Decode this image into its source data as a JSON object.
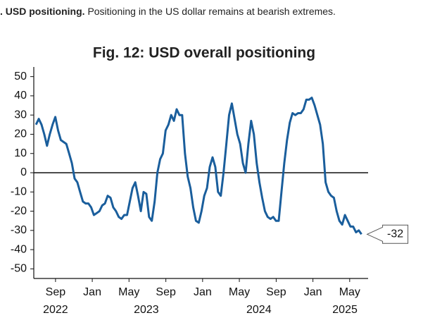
{
  "header": {
    "lead": ". USD positioning.",
    "text": "Positioning in the US dollar remains at bearish extremes."
  },
  "chart_data": {
    "type": "line",
    "title": "Fig. 12: USD overall positioning",
    "color": "#1a5e9c",
    "x": [
      2022.49,
      2022.515,
      2022.54,
      2022.565,
      2022.59,
      2022.615,
      2022.64,
      2022.665,
      2022.69,
      2022.715,
      2022.74,
      2022.765,
      2022.79,
      2022.815,
      2022.84,
      2022.865,
      2022.89,
      2022.915,
      2022.94,
      2022.965,
      2022.99,
      2023.015,
      2023.04,
      2023.065,
      2023.09,
      2023.115,
      2023.14,
      2023.165,
      2023.19,
      2023.215,
      2023.24,
      2023.265,
      2023.29,
      2023.315,
      2023.34,
      2023.365,
      2023.39,
      2023.415,
      2023.44,
      2023.465,
      2023.49,
      2023.515,
      2023.54,
      2023.565,
      2023.59,
      2023.615,
      2023.64,
      2023.665,
      2023.69,
      2023.715,
      2023.74,
      2023.765,
      2023.79,
      2023.815,
      2023.84,
      2023.865,
      2023.89,
      2023.915,
      2023.94,
      2023.965,
      2023.99,
      2024.015,
      2024.04,
      2024.065,
      2024.09,
      2024.115,
      2024.14,
      2024.165,
      2024.19,
      2024.215,
      2024.24,
      2024.265,
      2024.29,
      2024.315,
      2024.34,
      2024.365,
      2024.39,
      2024.415,
      2024.44,
      2024.465,
      2024.49,
      2024.515,
      2024.54,
      2024.565,
      2024.59,
      2024.615,
      2024.64,
      2024.665,
      2024.69,
      2024.715,
      2024.74,
      2024.765,
      2024.79,
      2024.815,
      2024.84,
      2024.865,
      2024.89,
      2024.915,
      2024.94,
      2024.965,
      2024.99,
      2025.015,
      2025.04,
      2025.065,
      2025.09,
      2025.115,
      2025.14,
      2025.165,
      2025.19,
      2025.215,
      2025.24,
      2025.265,
      2025.29,
      2025.315,
      2025.34,
      2025.365,
      2025.39,
      2025.415,
      2025.44
    ],
    "values": [
      25,
      28,
      25,
      20,
      14,
      20,
      25,
      29,
      22,
      17,
      16,
      15,
      10,
      5,
      -3,
      -5,
      -10,
      -15,
      -16,
      -16,
      -18,
      -22,
      -21,
      -20,
      -17,
      -16,
      -12,
      -13,
      -18,
      -20,
      -23,
      -24,
      -22,
      -22,
      -15,
      -8,
      -5,
      -12,
      -20,
      -10,
      -11,
      -23,
      -25,
      -15,
      0,
      7,
      10,
      22,
      25,
      30,
      27,
      33,
      30,
      30,
      10,
      -2,
      -8,
      -18,
      -25,
      -26,
      -20,
      -12,
      -8,
      3,
      8,
      3,
      -10,
      -12,
      0,
      15,
      30,
      36,
      28,
      20,
      15,
      5,
      0,
      15,
      27,
      20,
      5,
      -5,
      -13,
      -20,
      -23,
      -24,
      -23,
      -25,
      -25,
      -10,
      5,
      17,
      26,
      31,
      30,
      31,
      31,
      33,
      38,
      38,
      39,
      35,
      30,
      25,
      15,
      -5,
      -10,
      -12,
      -13,
      -20,
      -25,
      -27,
      -22,
      -25,
      -28,
      -28,
      -31,
      -30,
      -32
    ],
    "end_label": "-32",
    "xlim": [
      2022.47,
      2025.5
    ],
    "ylim": [
      -55,
      55
    ],
    "yticks": [
      50,
      40,
      30,
      20,
      10,
      0,
      -10,
      -20,
      -30,
      -40,
      -50
    ],
    "xticks": [
      {
        "value": 2022.667,
        "label": "Sep"
      },
      {
        "value": 2023.0,
        "label": "Jan"
      },
      {
        "value": 2023.333,
        "label": "May"
      },
      {
        "value": 2023.667,
        "label": "Sep"
      },
      {
        "value": 2024.0,
        "label": "Jan"
      },
      {
        "value": 2024.333,
        "label": "May"
      },
      {
        "value": 2024.667,
        "label": "Sep"
      },
      {
        "value": 2025.0,
        "label": "Jan"
      },
      {
        "value": 2025.333,
        "label": "May"
      }
    ],
    "year_labels": [
      {
        "value": 2022.667,
        "label": "2022"
      },
      {
        "value": 2023.49,
        "label": "2023"
      },
      {
        "value": 2024.51,
        "label": "2024"
      },
      {
        "value": 2025.29,
        "label": "2025"
      }
    ]
  }
}
